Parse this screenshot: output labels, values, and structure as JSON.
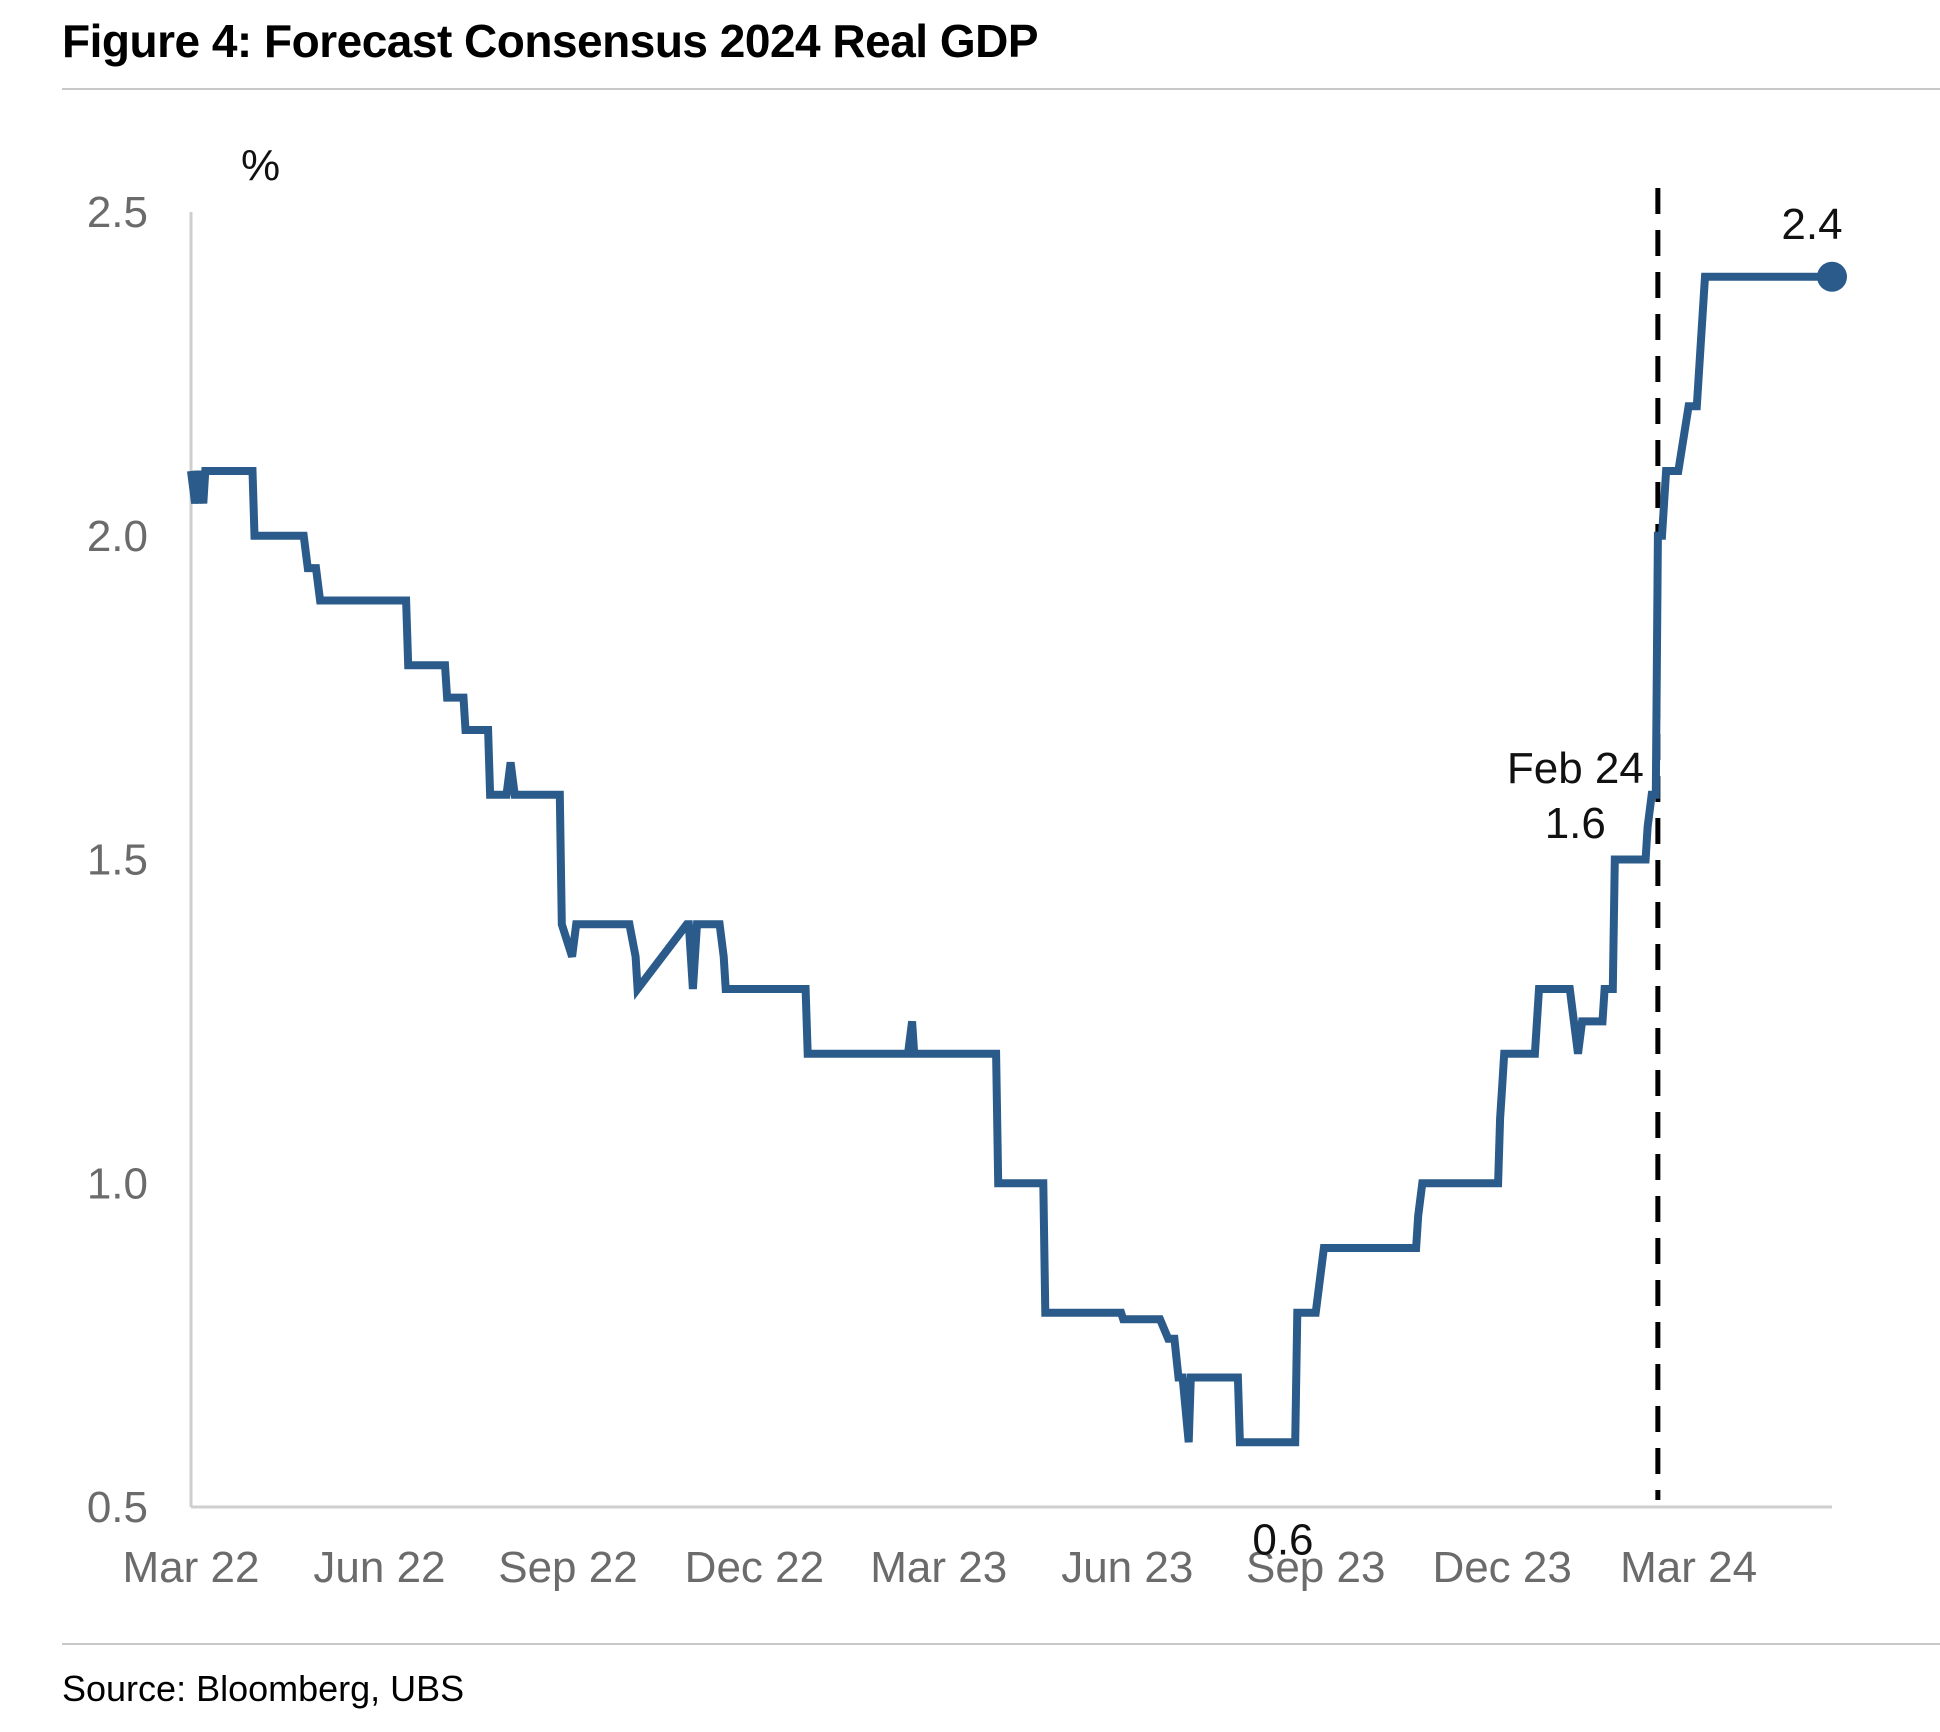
{
  "title": "Figure 4: Forecast Consensus 2024 Real GDP",
  "source": "Source: Bloomberg, UBS",
  "chart_data": {
    "type": "line",
    "ylabel": "%",
    "ylim": [
      0.5,
      2.5
    ],
    "yticks": [
      "0.5",
      "1.0",
      "1.5",
      "2.0",
      "2.5"
    ],
    "xlabels": [
      "Mar 22",
      "Jun 22",
      "Sep 22",
      "Dec 22",
      "Mar 23",
      "Jun 23",
      "Sep 23",
      "Dec 23",
      "Mar 24"
    ],
    "grid": false,
    "line_color": "#2b5b8b",
    "series": [
      {
        "x": [
          "2022-03-01",
          "2022-03-03",
          "2022-03-05",
          "2022-03-07",
          "2022-03-08",
          "2022-03-31",
          "2022-04-01",
          "2022-04-25",
          "2022-04-27",
          "2022-05-01",
          "2022-05-03",
          "2022-06-14",
          "2022-06-15",
          "2022-07-03",
          "2022-07-04",
          "2022-07-12",
          "2022-07-13",
          "2022-07-24",
          "2022-07-25",
          "2022-08-02",
          "2022-08-04",
          "2022-08-06",
          "2022-08-08",
          "2022-08-28",
          "2022-08-29",
          "2022-09-03",
          "2022-09-05",
          "2022-09-07",
          "2022-10-01",
          "2022-10-04",
          "2022-10-05",
          "2022-10-29",
          "2022-10-30",
          "2022-11-01",
          "2022-11-03",
          "2022-11-05",
          "2022-11-07",
          "2022-11-09",
          "2022-11-14",
          "2022-11-16",
          "2022-11-17",
          "2022-11-18",
          "2022-12-26",
          "2022-12-27",
          "2023-02-14",
          "2023-02-16",
          "2023-02-17",
          "2023-03-12",
          "2023-03-14",
          "2023-03-29",
          "2023-03-30",
          "2023-04-21",
          "2023-04-22",
          "2023-05-29",
          "2023-05-30",
          "2023-06-16",
          "2023-06-17",
          "2023-06-21",
          "2023-06-24",
          "2023-06-26",
          "2023-06-28",
          "2023-07-01",
          "2023-07-02",
          "2023-07-03",
          "2023-07-25",
          "2023-07-26",
          "2023-08-22",
          "2023-08-23",
          "2023-09-01",
          "2023-09-05",
          "2023-10-20",
          "2023-10-21",
          "2023-10-23",
          "2023-11-29",
          "2023-11-30",
          "2023-12-01",
          "2023-12-02",
          "2023-12-17",
          "2023-12-19",
          "2023-12-20",
          "2024-01-03",
          "2024-01-05",
          "2024-01-07",
          "2024-01-09",
          "2024-01-19",
          "2024-01-20",
          "2024-01-24",
          "2024-01-25",
          "2024-01-28",
          "2024-01-29",
          "2024-02-09",
          "2024-02-10",
          "2024-02-12",
          "2024-02-13",
          "2024-02-14",
          "2024-02-15",
          "2024-02-17",
          "2024-02-19",
          "2024-02-25",
          "2024-03-01",
          "2024-03-02",
          "2024-03-05",
          "2024-03-09",
          "2024-03-23",
          "2024-03-27",
          "2024-04-11",
          "2024-04-12",
          "2024-05-10"
        ],
        "y": [
          2.1,
          2.05,
          2.1,
          2.05,
          2.1,
          2.1,
          2.0,
          2.0,
          1.95,
          1.95,
          1.9,
          1.9,
          1.8,
          1.8,
          1.75,
          1.75,
          1.7,
          1.7,
          1.6,
          1.6,
          1.65,
          1.6,
          1.6,
          1.6,
          1.4,
          1.35,
          1.4,
          1.4,
          1.4,
          1.35,
          1.3,
          1.4,
          1.4,
          1.3,
          1.4,
          1.4,
          1.4,
          1.4,
          1.4,
          1.35,
          1.3,
          1.3,
          1.3,
          1.2,
          1.2,
          1.25,
          1.2,
          1.2,
          1.2,
          1.2,
          1.0,
          1.0,
          0.8,
          0.8,
          0.79,
          0.79,
          0.79,
          0.76,
          0.76,
          0.7,
          0.7,
          0.6,
          0.7,
          0.7,
          0.7,
          0.6,
          0.6,
          0.8,
          0.8,
          0.9,
          0.9,
          0.95,
          1.0,
          1.0,
          1.1,
          1.15,
          1.2,
          1.2,
          1.3,
          1.3,
          1.3,
          1.25,
          1.2,
          1.25,
          1.25,
          1.3,
          1.3,
          1.5,
          1.5,
          1.5,
          1.5,
          1.55,
          1.6,
          1.6,
          1.6,
          2.0,
          2.0,
          2.1,
          2.1,
          2.2,
          2.2,
          2.2,
          2.4,
          2.4,
          2.4,
          2.4,
          2.4,
          2.4
        ]
      }
    ],
    "annotations": {
      "event_label": "Feb 24",
      "event_value": "1.6",
      "min_value": "0.6",
      "last_value": "2.4"
    }
  }
}
